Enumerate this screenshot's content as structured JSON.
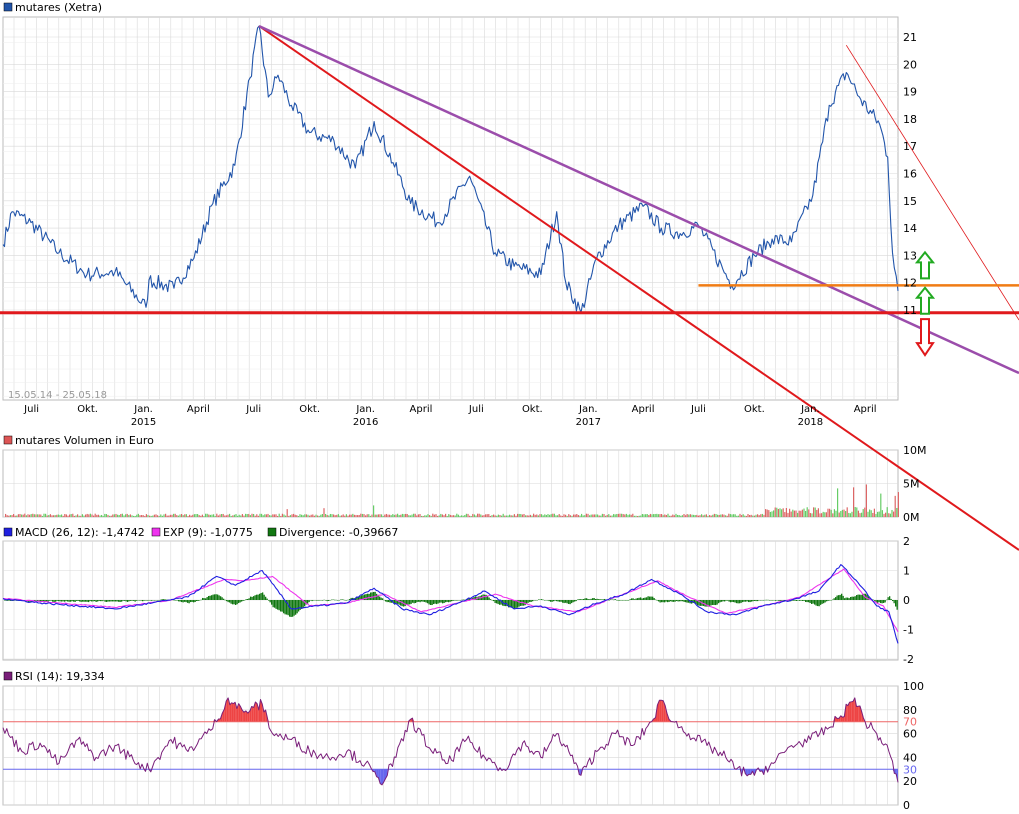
{
  "colors": {
    "price": "#2255aa",
    "grid": "#d9d9d9",
    "red": "#e0191c",
    "purple": "#9b4dab",
    "orange": "#f07c14",
    "green": "#22aa22",
    "macd": "#2020e0",
    "exp": "#ee33ee",
    "divergence": "#117711",
    "rsi": "#7a1f7a",
    "rsi70": "#ee6666",
    "rsi30": "#6666ee"
  },
  "chart_data": [
    {
      "type": "line",
      "title": "mutares (Xetra)",
      "date_range": "15.05.14 - 25.05.18",
      "x_months": [
        "Juli",
        "Okt.",
        "Jan.",
        "April",
        "Juli",
        "Okt.",
        "Jan.",
        "April",
        "Juli",
        "Okt.",
        "Jan.",
        "April",
        "Juli",
        "Okt.",
        "Jan.",
        "April"
      ],
      "x_years": [
        "2015",
        "2016",
        "2017",
        "2018"
      ],
      "y_ticks": [
        "21",
        "20",
        "19",
        "18",
        "17",
        "16",
        "15",
        "14",
        "13",
        "12",
        "11"
      ],
      "series": [
        {
          "x": [
            "2014-05-15",
            "2014-05-30",
            "2014-06-30",
            "2014-08-15",
            "2014-09-30",
            "2014-11-15",
            "2015-01-05",
            "2015-01-10",
            "2015-02-20",
            "2015-03-25",
            "2015-04-25",
            "2015-05-31",
            "2015-06-25",
            "2015-07-10",
            "2015-07-25",
            "2015-08-10",
            "2015-09-01",
            "2015-10-01",
            "2015-11-10",
            "2015-12-15",
            "2016-01-15",
            "2016-02-15",
            "2016-03-15",
            "2016-04-30",
            "2016-06-20",
            "2016-08-01",
            "2016-09-01",
            "2016-10-15",
            "2016-11-10",
            "2016-11-25",
            "2016-12-20",
            "2017-01-15",
            "2017-02-20",
            "2017-04-01",
            "2017-05-01",
            "2017-06-01",
            "2017-07-01",
            "2017-08-10",
            "2017-08-25",
            "2017-10-01",
            "2017-10-30",
            "2017-12-01",
            "2018-01-05",
            "2018-02-01",
            "2018-03-01",
            "2018-03-25",
            "2018-04-25",
            "2018-05-08",
            "2018-05-16",
            "2018-05-25"
          ],
          "y": [
            13.4,
            14.6,
            14.2,
            13.1,
            12.3,
            12.4,
            11.1,
            12.1,
            11.8,
            12.9,
            14.9,
            16.3,
            19.5,
            21.4,
            18.8,
            19.6,
            18.5,
            17.5,
            17.2,
            16.2,
            17.9,
            16.4,
            14.9,
            14.2,
            15.9,
            13.1,
            12.6,
            12.3,
            14.6,
            12.0,
            10.9,
            12.9,
            14.1,
            14.8,
            14.0,
            13.8,
            14.1,
            12.5,
            11.9,
            13.0,
            13.6,
            13.5,
            15.2,
            18.5,
            19.7,
            18.7,
            17.8,
            16.6,
            13.1,
            11.7
          ]
        }
      ],
      "ylim": [
        10.7,
        21.4
      ],
      "trendlines": [
        {
          "color": "red",
          "x": [
            "2015-07-10",
            "2018-06-05"
          ],
          "y": [
            21.4,
            7.7
          ]
        },
        {
          "color": "purple",
          "x": [
            "2015-07-10",
            "2018-06-05"
          ],
          "y": [
            21.4,
            10.9
          ]
        },
        {
          "color": "thin-red",
          "x": [
            "2018-03-01",
            "2018-06-05"
          ],
          "y": [
            20.7,
            11.9
          ]
        },
        {
          "color": "orange",
          "x": [
            "2017-07-01",
            "2018-06-05"
          ],
          "y": [
            11.9,
            11.9
          ]
        },
        {
          "color": "red-horizontal",
          "x": [
            "2014-05-15",
            "2018-06-05"
          ],
          "y": [
            10.9,
            10.9
          ]
        }
      ],
      "arrows": [
        {
          "direction": "up",
          "color": "green",
          "y": 12.6
        },
        {
          "direction": "up",
          "color": "green",
          "y": 11.3
        },
        {
          "direction": "down",
          "color": "red",
          "y": 10.3
        }
      ]
    },
    {
      "type": "bar",
      "title": "mutares Volumen in Euro",
      "y_ticks": [
        "10M",
        "5M",
        "0M"
      ],
      "ylim": [
        0,
        10000000
      ]
    },
    {
      "type": "line",
      "legend": [
        {
          "label": "MACD (26, 12): -1,4742",
          "color": "macd"
        },
        {
          "label": "EXP (9): -1,0775",
          "color": "exp"
        },
        {
          "label": "Divergence: -0,39667",
          "color": "divergence"
        }
      ],
      "y_ticks": [
        "2",
        "1",
        "0",
        "-1",
        "-2"
      ],
      "ylim": [
        -2,
        2
      ],
      "macd": {
        "x": [
          "2014-05-15",
          "2014-07-15",
          "2014-09-15",
          "2014-11-15",
          "2015-01-15",
          "2015-03-15",
          "2015-05-01",
          "2015-06-01",
          "2015-07-15",
          "2015-09-01",
          "2015-10-15",
          "2015-12-01",
          "2016-01-15",
          "2016-03-01",
          "2016-04-15",
          "2016-06-01",
          "2016-07-15",
          "2016-09-01",
          "2016-10-15",
          "2016-12-01",
          "2017-01-15",
          "2017-03-01",
          "2017-04-15",
          "2017-06-01",
          "2017-07-15",
          "2017-09-01",
          "2017-10-15",
          "2017-12-01",
          "2018-01-15",
          "2018-02-20",
          "2018-03-20",
          "2018-04-20",
          "2018-05-10",
          "2018-05-25"
        ],
        "y": [
          0.05,
          -0.1,
          -0.2,
          -0.3,
          -0.1,
          0.1,
          0.8,
          0.5,
          1.0,
          -0.3,
          -0.2,
          -0.1,
          0.4,
          -0.3,
          -0.5,
          -0.1,
          0.3,
          -0.3,
          -0.2,
          -0.5,
          -0.1,
          0.2,
          0.7,
          0.2,
          -0.4,
          -0.5,
          -0.2,
          0.0,
          0.3,
          1.2,
          0.6,
          -0.2,
          -0.4,
          -1.47
        ]
      },
      "exp": {
        "x": [
          "2014-05-15",
          "2014-08-15",
          "2014-11-15",
          "2015-02-15",
          "2015-05-15",
          "2015-06-15",
          "2015-08-01",
          "2015-10-01",
          "2015-12-01",
          "2016-02-01",
          "2016-04-01",
          "2016-06-01",
          "2016-08-01",
          "2016-10-01",
          "2016-12-15",
          "2017-02-15",
          "2017-04-25",
          "2017-06-15",
          "2017-08-15",
          "2017-10-15",
          "2017-12-15",
          "2018-02-25",
          "2018-04-01",
          "2018-05-01",
          "2018-05-25"
        ],
        "y": [
          0.05,
          -0.1,
          -0.25,
          0.0,
          0.7,
          0.65,
          0.8,
          -0.2,
          -0.1,
          0.2,
          -0.4,
          -0.1,
          0.2,
          -0.2,
          -0.4,
          0.1,
          0.65,
          0.1,
          -0.45,
          -0.2,
          0.1,
          1.05,
          0.1,
          -0.2,
          -1.08
        ]
      }
    },
    {
      "type": "line",
      "title": "RSI (14): 19,334",
      "y_ticks": [
        "100",
        "80",
        "60",
        "40",
        "20",
        "0"
      ],
      "ref_labels": [
        "70",
        "30"
      ],
      "ylim": [
        0,
        100
      ],
      "series": [
        {
          "x": [
            "2014-05-15",
            "2014-06-15",
            "2014-07-15",
            "2014-08-15",
            "2014-09-15",
            "2014-10-15",
            "2014-11-15",
            "2014-12-15",
            "2015-01-10",
            "2015-02-15",
            "2015-03-15",
            "2015-04-15",
            "2015-05-01",
            "2015-05-20",
            "2015-06-15",
            "2015-07-01",
            "2015-07-15",
            "2015-08-01",
            "2015-09-01",
            "2015-10-01",
            "2015-11-01",
            "2015-12-01",
            "2016-01-01",
            "2016-01-25",
            "2016-02-20",
            "2016-03-15",
            "2016-04-15",
            "2016-05-15",
            "2016-06-15",
            "2016-07-15",
            "2016-08-15",
            "2016-09-15",
            "2016-10-15",
            "2016-11-10",
            "2016-11-30",
            "2016-12-20",
            "2017-01-15",
            "2017-02-15",
            "2017-03-15",
            "2017-04-15",
            "2017-05-01",
            "2017-05-20",
            "2017-06-15",
            "2017-07-15",
            "2017-08-15",
            "2017-09-01",
            "2017-10-01",
            "2017-11-01",
            "2017-12-01",
            "2018-01-01",
            "2018-02-01",
            "2018-02-20",
            "2018-03-15",
            "2018-04-01",
            "2018-04-20",
            "2018-05-10",
            "2018-05-25"
          ],
          "y": [
            65,
            45,
            52,
            35,
            55,
            40,
            50,
            38,
            30,
            55,
            45,
            60,
            70,
            90,
            78,
            82,
            85,
            60,
            55,
            45,
            40,
            45,
            35,
            18,
            40,
            72,
            48,
            35,
            55,
            40,
            30,
            52,
            40,
            60,
            45,
            25,
            45,
            60,
            50,
            70,
            88,
            70,
            60,
            50,
            40,
            30,
            25,
            35,
            50,
            55,
            65,
            75,
            90,
            70,
            60,
            45,
            19
          ]
        }
      ]
    }
  ]
}
